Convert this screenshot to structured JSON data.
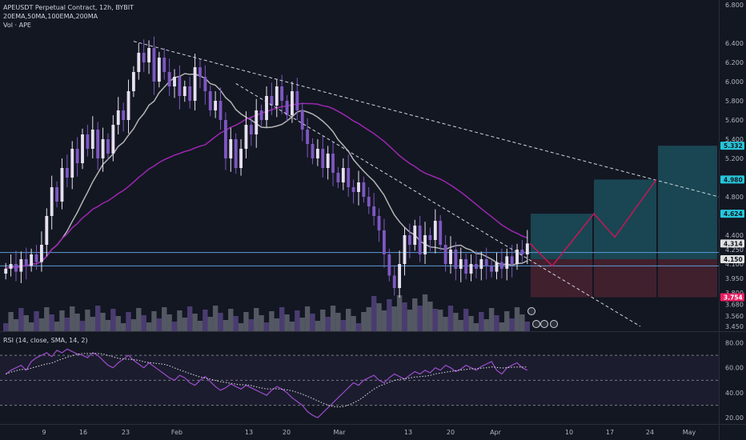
{
  "legend": {
    "title": "APEUSDT Perpetual Contract, 12h, BYBIT",
    "mas": "20EMA,50MA,100EMA,200MA",
    "vol": "Vol · APE",
    "rsi": "RSI (14, close, SMA, 14, 2)"
  },
  "colors": {
    "background": "#131722",
    "bull": "#e6e0f0",
    "bear": "#7e57c2",
    "ma_gray": "#b5b5b5",
    "ma_purple": "#9c27b0",
    "trend_line": "#d1d4dc",
    "level_line": "#5b9bd5",
    "target_zone": "#1b4f5a",
    "stop_zone": "#4a2230",
    "forecast": "#c2185b",
    "rsi_line": "#9c4dcc",
    "rsi_sma": "#e0e0e0"
  },
  "chart_data": [
    {
      "type": "candlestick",
      "title": "APEUSDT Perpetual Contract, 12h, BYBIT",
      "y_axis_ticks": [
        "6.800",
        "6.400",
        "6.200",
        "6.000",
        "5.800",
        "5.600",
        "5.400",
        "5.200",
        "4.800",
        "4.400",
        "4.250",
        "4.100",
        "3.950",
        "3.800",
        "3.680",
        "3.560",
        "3.450"
      ],
      "x_axis_ticks": [
        "9",
        "16",
        "23",
        "Feb",
        "13",
        "20",
        "Mar",
        "13",
        "20",
        "Apr",
        "10",
        "17",
        "24",
        "May"
      ],
      "price_labels": [
        {
          "value": "5.332",
          "color": "#26c6da"
        },
        {
          "value": "4.980",
          "color": "#26c6da"
        },
        {
          "value": "4.624",
          "color": "#26c6da"
        },
        {
          "value": "4.314",
          "color": "#e0e0e0"
        },
        {
          "value": "4.150",
          "color": "#e0e0e0"
        },
        {
          "value": "3.754",
          "color": "#e91e63"
        }
      ],
      "ylim": [
        3.4,
        6.85
      ],
      "key_levels": [
        4.22,
        4.08
      ],
      "trade_setup": {
        "entry": 4.15,
        "stop": 3.754,
        "targets": [
          4.624,
          4.98,
          5.332
        ]
      },
      "forecast_path": [
        4.314,
        4.08,
        4.624,
        4.38,
        4.98
      ],
      "series_closes": [
        4.05,
        4.1,
        4.02,
        4.15,
        4.08,
        4.2,
        4.12,
        4.3,
        4.6,
        4.9,
        4.75,
        5.1,
        5.0,
        5.3,
        5.15,
        5.45,
        5.3,
        5.5,
        5.2,
        5.4,
        5.25,
        5.55,
        5.7,
        5.6,
        5.9,
        6.1,
        6.3,
        6.2,
        6.35,
        6.0,
        6.25,
        6.1,
        5.95,
        6.05,
        5.85,
        5.95,
        5.8,
        6.15,
        6.05,
        5.9,
        5.7,
        5.8,
        5.6,
        5.2,
        5.4,
        5.1,
        5.3,
        5.55,
        5.45,
        5.7,
        5.6,
        5.85,
        5.75,
        5.95,
        5.8,
        5.65,
        5.9,
        5.7,
        5.5,
        5.35,
        5.2,
        5.3,
        5.1,
        5.25,
        5.05,
        4.95,
        5.1,
        4.9,
        4.85,
        4.95,
        4.8,
        4.7,
        4.6,
        4.45,
        4.2,
        3.98,
        3.85,
        4.1,
        4.4,
        4.3,
        4.5,
        4.2,
        4.4,
        4.35,
        4.55,
        4.3,
        4.1,
        4.25,
        4.05,
        4.15,
        4.0,
        4.1,
        4.05,
        4.15,
        4.08,
        4.02,
        4.12,
        4.05,
        4.18,
        4.1,
        4.25,
        4.2,
        4.314
      ]
    },
    {
      "type": "line",
      "title": "RSI (14, close, SMA, 14, 2)",
      "y_axis_ticks": [
        "80.00",
        "60.00",
        "40.00",
        "20.00"
      ],
      "ylim": [
        15,
        88
      ],
      "band": [
        70,
        30
      ],
      "rsi_values": [
        55,
        58,
        60,
        62,
        58,
        65,
        68,
        70,
        72,
        69,
        74,
        72,
        75,
        73,
        71,
        70,
        68,
        72,
        70,
        66,
        62,
        60,
        64,
        67,
        70,
        66,
        63,
        60,
        64,
        61,
        58,
        55,
        52,
        50,
        54,
        52,
        48,
        46,
        50,
        53,
        49,
        45,
        42,
        44,
        47,
        45,
        43,
        46,
        44,
        42,
        40,
        38,
        42,
        45,
        43,
        40,
        36,
        33,
        30,
        25,
        22,
        20,
        24,
        28,
        32,
        36,
        40,
        44,
        48,
        46,
        50,
        52,
        54,
        50,
        48,
        52,
        55,
        53,
        51,
        54,
        57,
        55,
        58,
        56,
        60,
        58,
        62,
        60,
        57,
        59,
        62,
        60,
        58,
        61,
        63,
        65,
        58,
        55,
        60,
        62,
        64,
        60,
        58
      ]
    }
  ]
}
